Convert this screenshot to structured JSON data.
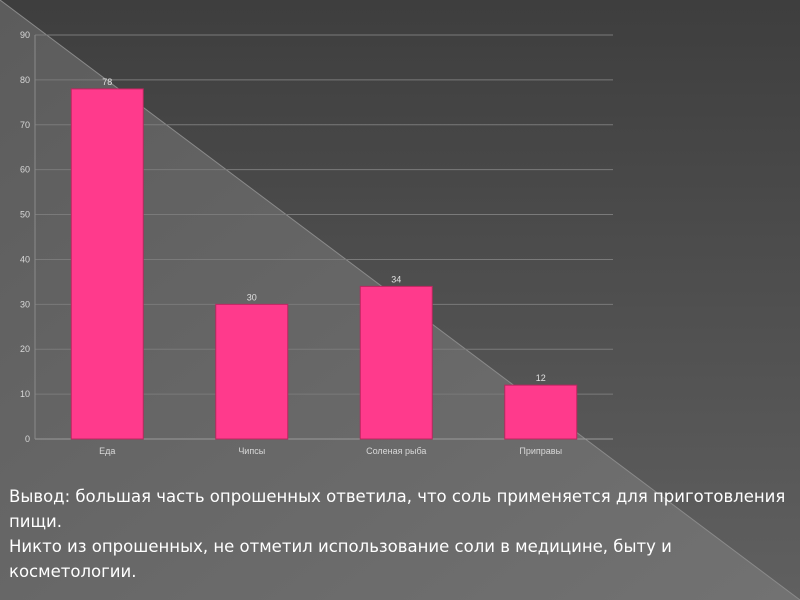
{
  "chart_data": {
    "type": "bar",
    "categories": [
      "Еда",
      "Чипсы",
      "Соленая рыба",
      "Приправы"
    ],
    "values": [
      78,
      30,
      34,
      12
    ],
    "ylim": [
      0,
      90
    ],
    "yticks": [
      0,
      10,
      20,
      30,
      40,
      50,
      60,
      70,
      80,
      90
    ],
    "data_labels": true,
    "grid": true,
    "bar_color": "#ff3a8c"
  },
  "conclusion": {
    "line1": "Вывод: большая часть опрошенных ответила, что соль применяется для приготовления пищи.",
    "line2": "Никто из опрошенных, не отметил использование соли в медицине, быту и косметологии."
  },
  "colors": {
    "background_dark": "#4a4a4a",
    "background_light": "#6e6e6e",
    "text": "#ffffff"
  }
}
